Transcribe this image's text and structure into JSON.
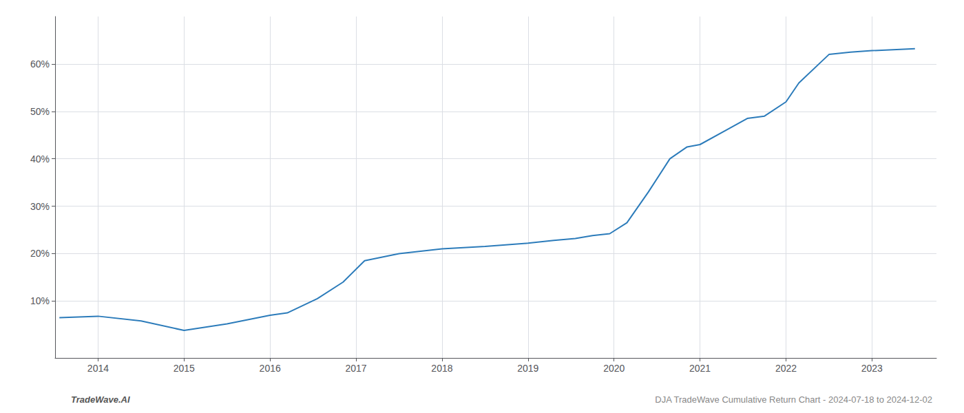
{
  "chart_data": {
    "type": "line",
    "title": "DJA TradeWave Cumulative Return Chart - 2024-07-18 to 2024-12-02",
    "annotations": [
      "TradeWave.AI"
    ],
    "x": [
      2013.55,
      2014.0,
      2014.5,
      2015.0,
      2015.5,
      2016.0,
      2016.2,
      2016.55,
      2016.85,
      2017.1,
      2017.5,
      2018.0,
      2018.5,
      2019.0,
      2019.3,
      2019.55,
      2019.75,
      2019.95,
      2020.15,
      2020.4,
      2020.65,
      2020.85,
      2021.0,
      2021.3,
      2021.55,
      2021.75,
      2022.0,
      2022.15,
      2022.5,
      2022.75,
      2023.0,
      2023.5
    ],
    "values": [
      6.5,
      6.8,
      5.8,
      3.8,
      5.2,
      7.0,
      7.5,
      10.5,
      14.0,
      18.5,
      20.0,
      21.0,
      21.5,
      22.2,
      22.8,
      23.2,
      23.8,
      24.2,
      26.5,
      33.0,
      40.0,
      42.5,
      43.0,
      46.0,
      48.5,
      49.0,
      52.0,
      56.0,
      62.0,
      62.5,
      62.8,
      63.2
    ],
    "color": "#2b7bba",
    "xlim": [
      2013.5,
      2023.75
    ],
    "xticks": [
      2014,
      2015,
      2016,
      2017,
      2018,
      2019,
      2020,
      2021,
      2022,
      2023
    ],
    "ylim": [
      -2,
      70
    ],
    "yticks": [
      {
        "value": 10,
        "label": "10%"
      },
      {
        "value": 20,
        "label": "20%"
      },
      {
        "value": 30,
        "label": "30%"
      },
      {
        "value": 40,
        "label": "40%"
      },
      {
        "value": 50,
        "label": "50%"
      },
      {
        "value": 60,
        "label": "60%"
      }
    ],
    "grid": true
  }
}
